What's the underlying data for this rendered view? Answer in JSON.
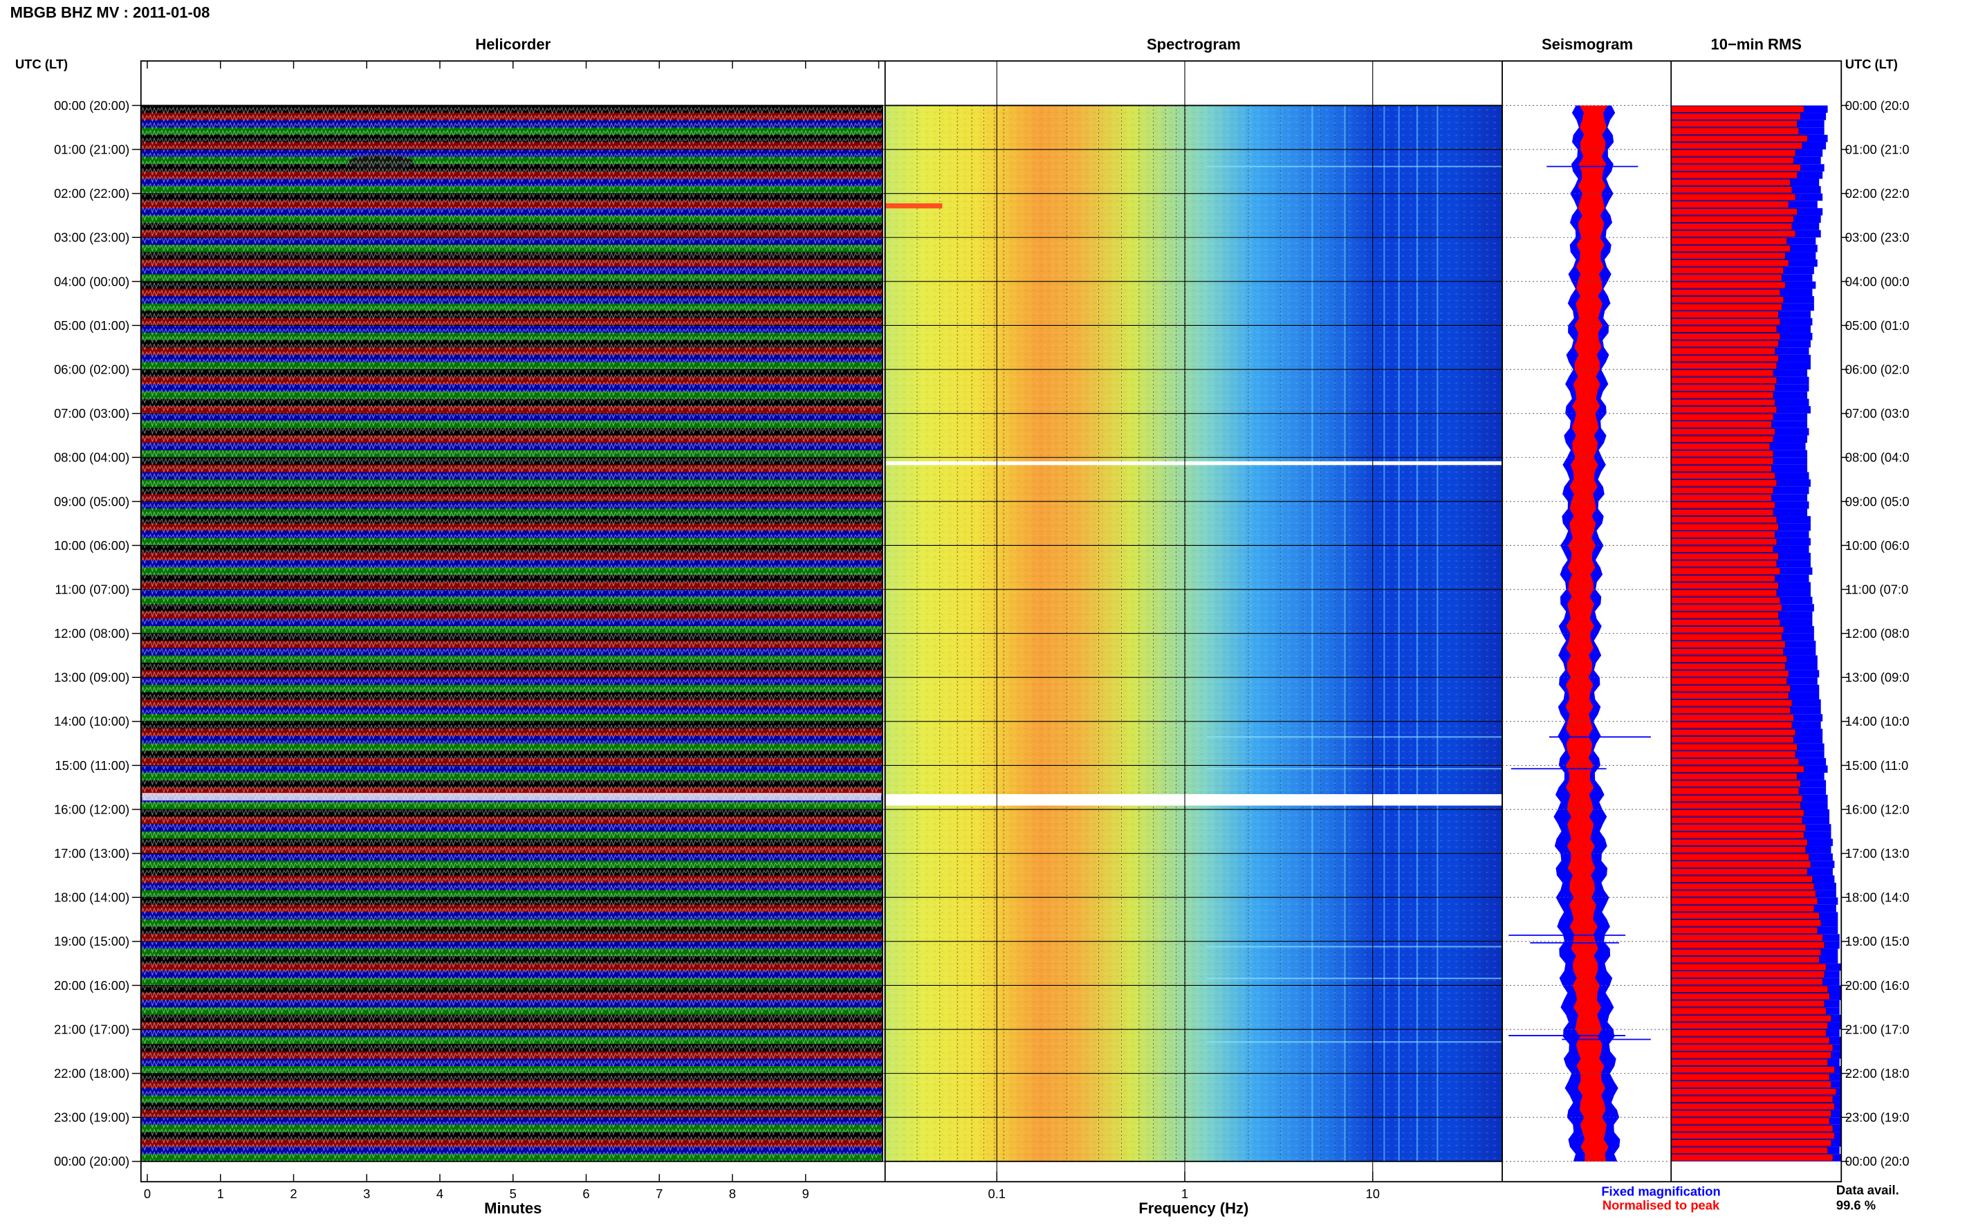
{
  "header": {
    "title": "MBGB BHZ MV : 2011-01-08"
  },
  "panels": {
    "helicorder": "Helicorder",
    "spectrogram": "Spectrogram",
    "seismogram": "Seismogram",
    "rms": "10−min RMS"
  },
  "axes": {
    "left_header": "UTC (LT)",
    "right_header": "UTC (LT)",
    "time_left": [
      "00:00 (20:00)",
      "01:00 (21:00)",
      "02:00 (22:00)",
      "03:00 (23:00)",
      "04:00 (00:00)",
      "05:00 (01:00)",
      "06:00 (02:00)",
      "07:00 (03:00)",
      "08:00 (04:00)",
      "09:00 (05:00)",
      "10:00 (06:00)",
      "11:00 (07:00)",
      "12:00 (08:00)",
      "13:00 (09:00)",
      "14:00 (10:00)",
      "15:00 (11:00)",
      "16:00 (12:00)",
      "17:00 (13:00)",
      "18:00 (14:00)",
      "19:00 (15:00)",
      "20:00 (16:00)",
      "21:00 (17:00)",
      "22:00 (18:00)",
      "23:00 (19:00)",
      "00:00 (20:00)"
    ],
    "time_right": [
      "00:00 (20:0",
      "01:00 (21:0",
      "02:00 (22:0",
      "03:00 (23:0",
      "04:00 (00:0",
      "05:00 (01:0",
      "06:00 (02:0",
      "07:00 (03:0",
      "08:00 (04:0",
      "09:00 (05:0",
      "10:00 (06:0",
      "11:00 (07:0",
      "12:00 (08:0",
      "13:00 (09:0",
      "14:00 (10:0",
      "15:00 (11:0",
      "16:00 (12:0",
      "17:00 (13:0",
      "18:00 (14:0",
      "19:00 (15:0",
      "20:00 (16:0",
      "21:00 (17:0",
      "22:00 (18:0",
      "23:00 (19:0",
      "00:00 (20:0"
    ],
    "minutes_ticks": [
      "0",
      "1",
      "2",
      "3",
      "4",
      "5",
      "6",
      "7",
      "8",
      "9"
    ],
    "minutes_label": "Minutes",
    "freq_ticks": [
      "0.1",
      "1",
      "10"
    ],
    "freq_label": "Frequency (Hz)"
  },
  "legend": {
    "fixed": "Fixed magnification",
    "normalised": "Normalised to peak",
    "fixed_color": "#0000ff",
    "normalised_color": "#ff0000"
  },
  "availability": {
    "label": "Data avail.",
    "value": "99.6 %"
  },
  "colors": {
    "trace_cycle": [
      "#000000",
      "#8b0000",
      "#0000aa",
      "#007700"
    ]
  },
  "chart_data": {
    "type": "heatmap",
    "station": "MBGB BHZ MV",
    "date": "2011-01-08",
    "helicorder": {
      "xlim_minutes": [
        0,
        10
      ],
      "lines": 144,
      "trace_colors": [
        "black",
        "dark red",
        "blue",
        "green"
      ]
    },
    "spectrogram": {
      "xscale": "log",
      "xlim_hz": [
        0.02,
        50
      ],
      "peak_band_hz": [
        0.2,
        0.35
      ],
      "gaps_utc": [
        "08:05",
        "15:40-15:50"
      ]
    },
    "seismogram": {
      "series": [
        "Fixed magnification",
        "Normalised to peak"
      ]
    },
    "rms_10min": {
      "window_minutes": 10,
      "normalised": [
        0.78,
        0.76,
        0.74,
        0.75,
        0.8,
        0.77,
        0.73,
        0.72,
        0.76,
        0.74,
        0.7,
        0.71,
        0.73,
        0.69,
        0.74,
        0.72,
        0.71,
        0.73,
        0.68,
        0.7,
        0.67,
        0.69,
        0.66,
        0.65,
        0.67,
        0.64,
        0.66,
        0.65,
        0.63,
        0.64,
        0.62,
        0.64,
        0.63,
        0.61,
        0.63,
        0.62,
        0.6,
        0.62,
        0.61,
        0.6,
        0.61,
        0.62,
        0.6,
        0.59,
        0.61,
        0.6,
        0.58,
        0.6,
        0.6,
        0.59,
        0.61,
        0.62,
        0.6,
        0.59,
        0.61,
        0.6,
        0.62,
        0.63,
        0.61,
        0.62,
        0.6,
        0.63,
        0.62,
        0.64,
        0.61,
        0.63,
        0.62,
        0.64,
        0.65,
        0.63,
        0.64,
        0.66,
        0.65,
        0.67,
        0.66,
        0.68,
        0.67,
        0.69,
        0.68,
        0.7,
        0.69,
        0.71,
        0.7,
        0.72,
        0.71,
        0.73,
        0.72,
        0.74,
        0.73,
        0.75,
        0.78,
        0.74,
        0.76,
        0.75,
        0.77,
        0.76,
        0.78,
        0.77,
        0.79,
        0.78,
        0.8,
        0.79,
        0.81,
        0.82,
        0.8,
        0.83,
        0.84,
        0.85,
        0.86,
        0.84,
        0.87,
        0.88,
        0.86,
        0.89,
        0.9,
        0.88,
        0.87,
        0.91,
        0.9,
        0.89,
        0.92,
        0.93,
        0.9,
        0.91,
        0.94,
        0.92,
        0.91,
        0.93,
        0.95,
        0.94,
        0.92,
        0.96,
        0.93,
        0.94,
        0.97,
        0.95,
        0.96,
        0.94,
        0.93,
        0.95,
        0.96,
        0.94,
        0.92,
        0.95
      ],
      "fixed": [
        0.92,
        0.91,
        0.9,
        0.9,
        0.92,
        0.91,
        0.89,
        0.88,
        0.9,
        0.89,
        0.87,
        0.88,
        0.89,
        0.86,
        0.89,
        0.88,
        0.87,
        0.88,
        0.85,
        0.86,
        0.85,
        0.86,
        0.84,
        0.83,
        0.85,
        0.83,
        0.84,
        0.84,
        0.82,
        0.83,
        0.82,
        0.83,
        0.82,
        0.81,
        0.82,
        0.82,
        0.8,
        0.81,
        0.81,
        0.8,
        0.81,
        0.82,
        0.8,
        0.8,
        0.81,
        0.8,
        0.79,
        0.8,
        0.8,
        0.8,
        0.81,
        0.82,
        0.81,
        0.8,
        0.81,
        0.8,
        0.82,
        0.82,
        0.81,
        0.82,
        0.81,
        0.82,
        0.82,
        0.83,
        0.81,
        0.82,
        0.82,
        0.83,
        0.84,
        0.83,
        0.83,
        0.84,
        0.84,
        0.85,
        0.85,
        0.86,
        0.86,
        0.87,
        0.86,
        0.87,
        0.87,
        0.88,
        0.88,
        0.89,
        0.88,
        0.89,
        0.89,
        0.9,
        0.9,
        0.91,
        0.92,
        0.9,
        0.91,
        0.91,
        0.92,
        0.92,
        0.93,
        0.93,
        0.94,
        0.94,
        0.95,
        0.94,
        0.95,
        0.96,
        0.95,
        0.96,
        0.97,
        0.97,
        0.98,
        0.97,
        0.98,
        0.98,
        0.98,
        0.99,
        0.99,
        0.98,
        0.98,
        1.0,
        0.99,
        0.99,
        1.0,
        1.0,
        0.99,
        0.99,
        1.0,
        1.0,
        0.99,
        1.0,
        1.0,
        1.0,
        0.99,
        1.0,
        1.0,
        1.0,
        1.0,
        1.0,
        1.0,
        1.0,
        1.0,
        1.0,
        1.0,
        1.0,
        0.99,
        1.0
      ]
    }
  }
}
